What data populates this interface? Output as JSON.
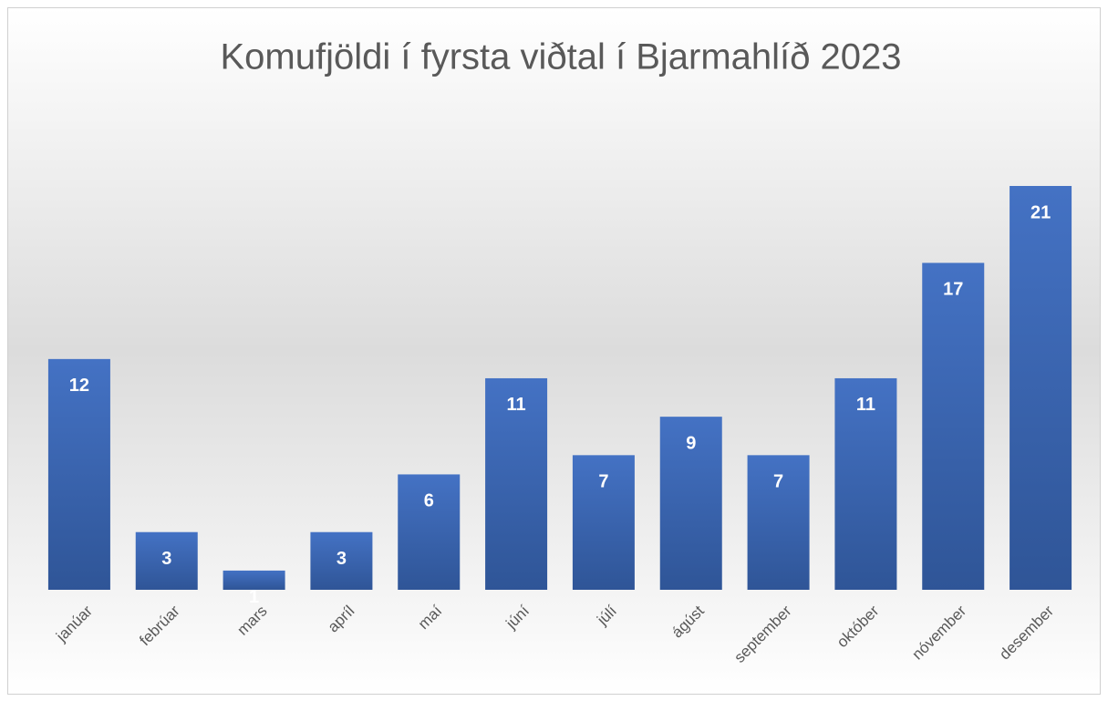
{
  "chart_data": {
    "type": "bar",
    "title": "Komufjöldi í fyrsta viðtal í Bjarmahlíð 2023",
    "categories": [
      "janúar",
      "febrúar",
      "mars",
      "apríl",
      "maí",
      "júní",
      "júlí",
      "ágúst",
      "september",
      "október",
      "nóvember",
      "desember"
    ],
    "values": [
      12,
      3,
      1,
      3,
      6,
      11,
      7,
      9,
      7,
      11,
      17,
      21
    ],
    "color": "#4472c4"
  }
}
